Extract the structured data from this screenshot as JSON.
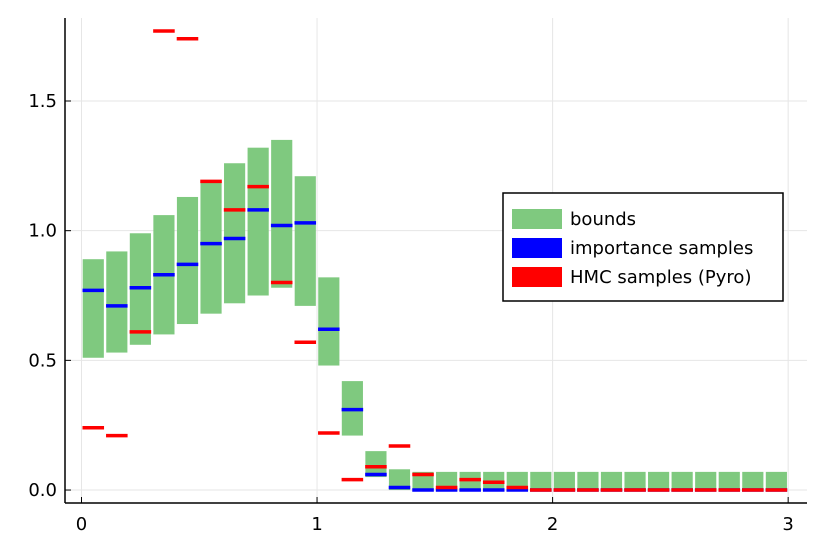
{
  "chart_data": {
    "type": "bar",
    "xlim": [
      -0.07,
      3.08
    ],
    "ylim": [
      -0.05,
      1.82
    ],
    "grid": true,
    "xticks": [
      0,
      1,
      2,
      3
    ],
    "xtick_labels": [
      "0",
      "1",
      "2",
      "3"
    ],
    "yticks": [
      0.0,
      0.5,
      1.0,
      1.5
    ],
    "ytick_labels": [
      "0.0",
      "0.5",
      "1.0",
      "1.5"
    ],
    "bin_width": 0.1,
    "bin_centers": [
      0.05,
      0.15,
      0.25,
      0.35,
      0.45,
      0.55,
      0.65,
      0.75,
      0.85,
      0.95,
      1.05,
      1.15,
      1.25,
      1.35,
      1.45,
      1.55,
      1.65,
      1.75,
      1.85,
      1.95,
      2.05,
      2.15,
      2.25,
      2.35,
      2.45,
      2.55,
      2.65,
      2.75,
      2.85,
      2.95
    ],
    "legend": {
      "position": "right",
      "entries": [
        {
          "label": "bounds",
          "color": "#7fc97f"
        },
        {
          "label": "importance samples",
          "color": "#0000ff"
        },
        {
          "label": "HMC samples (Pyro)",
          "color": "#ff0000"
        }
      ]
    },
    "series": [
      {
        "name": "bounds",
        "kind": "range",
        "color": "#7fc97f",
        "lower": [
          0.51,
          0.53,
          0.56,
          0.6,
          0.64,
          0.68,
          0.72,
          0.75,
          0.78,
          0.71,
          0.48,
          0.21,
          0.05,
          0,
          0,
          0,
          0,
          0,
          0,
          0,
          0,
          0,
          0,
          0,
          0,
          0,
          0,
          0,
          0,
          0
        ],
        "upper": [
          0.89,
          0.92,
          0.99,
          1.06,
          1.13,
          1.19,
          1.26,
          1.32,
          1.35,
          1.21,
          0.82,
          0.42,
          0.15,
          0.08,
          0.07,
          0.07,
          0.07,
          0.07,
          0.07,
          0.07,
          0.07,
          0.07,
          0.07,
          0.07,
          0.07,
          0.07,
          0.07,
          0.07,
          0.07,
          0.07
        ]
      },
      {
        "name": "importance samples",
        "kind": "marker",
        "color": "#0000ff",
        "values": [
          0.77,
          0.71,
          0.78,
          0.83,
          0.87,
          0.95,
          0.97,
          1.08,
          1.02,
          1.03,
          0.62,
          0.31,
          0.06,
          0.01,
          0.0,
          0.0,
          0.0,
          0.0,
          0.0,
          0.0,
          0.0,
          0.0,
          0.0,
          0.0,
          0.0,
          0.0,
          0.0,
          0.0,
          0.0,
          0.0
        ]
      },
      {
        "name": "HMC samples (Pyro)",
        "kind": "marker",
        "color": "#ff0000",
        "values": [
          0.24,
          0.21,
          0.61,
          1.77,
          1.74,
          1.19,
          1.08,
          1.17,
          0.8,
          0.57,
          0.22,
          0.04,
          0.09,
          0.17,
          0.06,
          0.01,
          0.04,
          0.03,
          0.01,
          0.0,
          0.0,
          0.0,
          0.0,
          0.0,
          0.0,
          0.0,
          0.0,
          0.0,
          0.0,
          0.0
        ]
      }
    ]
  }
}
